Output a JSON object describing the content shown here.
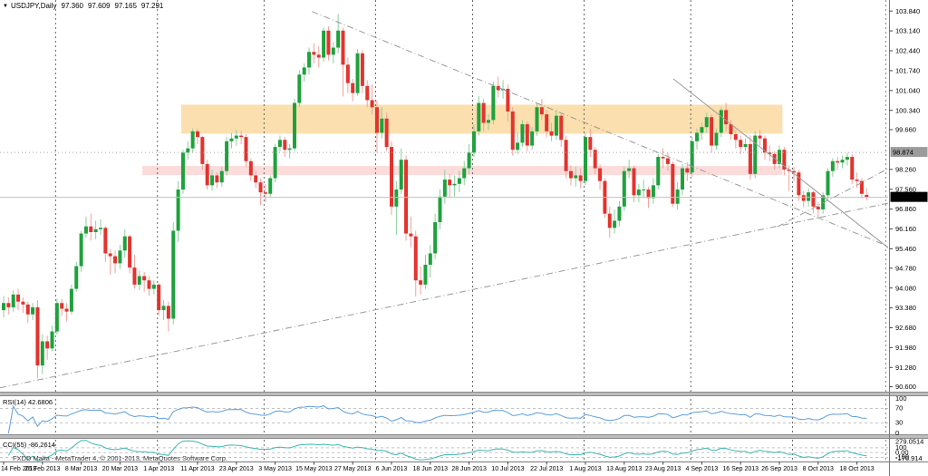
{
  "title": {
    "symbol": "USDJPY,Daily",
    "open": "97.360",
    "high": "97.609",
    "low": "97.165",
    "close": "97.291"
  },
  "watermark": {
    "text": "FXDD Malta - MetaTrader 4, © 2001-2013, MetaQuotes Software Corp."
  },
  "price_axis": {
    "labels": [
      "103.840",
      "103.140",
      "102.440",
      "101.740",
      "101.040",
      "100.340",
      "99.660",
      "98.260",
      "97.560",
      "96.860",
      "96.160",
      "95.460",
      "94.780",
      "94.080",
      "93.380",
      "92.680",
      "91.980",
      "91.280",
      "90.600"
    ],
    "gray_badge": {
      "text": "98.874",
      "price": 98.874
    },
    "black_badge": {
      "text": "97.291",
      "price": 97.291
    }
  },
  "time_axis": {
    "label_every_n_bars": 8,
    "labels": [
      "14 Feb 2013",
      "26 Feb 2013",
      "8 Mar 2013",
      "20 Mar 2013",
      "1 Apr 2013",
      "11 Apr 2013",
      "23 Apr 2013",
      "3 May 2013",
      "15 May 2013",
      "27 May 2013",
      "6 Jun 2013",
      "18 Jun 2013",
      "28 Jun 2013",
      "10 Jul 2013",
      "22 Jul 2013",
      "1 Aug 2013",
      "13 Aug 2013",
      "23 Aug 2013",
      "4 Sep 2013",
      "16 Sep 2013",
      "26 Sep 2013",
      "8 Oct 2013",
      "18 Oct 2013"
    ]
  },
  "panels": {
    "rsi": {
      "display_name": "RSI(14)",
      "value": "42.6806",
      "axis_labels": [
        "100",
        "70",
        "30",
        "0"
      ],
      "levels": [
        70,
        30
      ],
      "range": [
        0,
        100
      ],
      "color": "#5b9fdc"
    },
    "cci": {
      "display_name": "CCI(55)",
      "value": "-86.2614",
      "max_label": "279.0514",
      "axis_labels": [
        "100",
        "0.00",
        "-100"
      ],
      "min_label": "-176.914",
      "levels": [
        100,
        0,
        -100
      ],
      "range": [
        -176.914,
        279.0514
      ],
      "color": "#3fb8b2"
    }
  },
  "chart_data": {
    "type": "candlestick",
    "title": "USDJPY,Daily 97.360 97.609 97.165 97.291",
    "symbol": "USDJPY",
    "timeframe": "Daily",
    "ylim": [
      90.43,
      104.23
    ],
    "grid": "off",
    "up_color": "#1fa13d",
    "down_color": "#e2332e",
    "up_wick_color": "#8ccf9c",
    "down_wick_color": "#f2a19c",
    "zones": [
      {
        "name": "resistance-zone",
        "color": "#fbdfae",
        "price_from": 99.52,
        "price_to": 100.54,
        "bar_from": 37,
        "bar_to": 161
      },
      {
        "name": "support-zone",
        "color": "#fbdcda",
        "price_from": 98.06,
        "price_to": 98.38,
        "bar_from": 29,
        "bar_to": 161
      }
    ],
    "hlines": [
      {
        "price": 98.874,
        "style": "dotted",
        "color": "#a8a8a8"
      },
      {
        "price": 97.291,
        "style": "solid",
        "color": "#c0c0c0"
      }
    ],
    "trendlines": [
      {
        "bar1": 64,
        "price1": 103.82,
        "bar2": 188,
        "price2": 95.19,
        "style": "dashdot"
      },
      {
        "bar1": -0.4,
        "price1": 90.56,
        "bar2": 191,
        "price2": 97.36,
        "style": "dashdot"
      },
      {
        "bar1": 138.5,
        "price1": 101.45,
        "bar2": 187.5,
        "price2": 94.87,
        "style": "solid"
      },
      {
        "bar1": 160,
        "price1": 96.24,
        "bar2": 191,
        "price2": 99.02,
        "style": "dashdot"
      }
    ],
    "month_separator_bars": [
      11,
      32,
      54,
      77,
      97,
      120,
      142,
      163
    ],
    "rsi_period": 14,
    "cci_period": 55,
    "candles": [
      [
        93.3,
        93.8,
        93.05,
        93.55
      ],
      [
        93.55,
        93.75,
        93.15,
        93.4
      ],
      [
        93.4,
        94.0,
        93.25,
        93.85
      ],
      [
        93.85,
        94.05,
        93.3,
        93.6
      ],
      [
        93.6,
        93.75,
        93.2,
        93.5
      ],
      [
        93.5,
        93.6,
        92.85,
        93.15
      ],
      [
        93.15,
        93.55,
        92.95,
        93.4
      ],
      [
        93.4,
        93.65,
        90.9,
        91.35
      ],
      [
        91.35,
        92.45,
        91.05,
        92.2
      ],
      [
        92.2,
        92.4,
        91.55,
        91.95
      ],
      [
        91.95,
        92.75,
        91.85,
        92.55
      ],
      [
        92.55,
        93.7,
        92.45,
        93.55
      ],
      [
        93.55,
        93.7,
        93.1,
        93.35
      ],
      [
        93.35,
        93.55,
        92.9,
        93.25
      ],
      [
        93.25,
        94.2,
        93.15,
        94.05
      ],
      [
        94.05,
        95.0,
        93.95,
        94.85
      ],
      [
        94.85,
        96.1,
        94.65,
        96.0
      ],
      [
        96.0,
        96.6,
        95.85,
        96.25
      ],
      [
        96.25,
        96.7,
        95.75,
        96.05
      ],
      [
        96.05,
        96.45,
        95.8,
        96.15
      ],
      [
        96.15,
        96.5,
        95.95,
        96.2
      ],
      [
        96.2,
        96.25,
        95.0,
        95.3
      ],
      [
        95.3,
        95.45,
        94.55,
        95.2
      ],
      [
        95.2,
        95.4,
        94.6,
        94.95
      ],
      [
        94.95,
        95.6,
        94.75,
        95.4
      ],
      [
        95.4,
        96.15,
        95.15,
        95.9
      ],
      [
        95.9,
        95.95,
        94.6,
        94.8
      ],
      [
        94.8,
        95.25,
        94.05,
        94.2
      ],
      [
        94.2,
        94.7,
        94.0,
        94.5
      ],
      [
        94.5,
        94.65,
        93.95,
        94.35
      ],
      [
        94.35,
        94.5,
        93.8,
        94.05
      ],
      [
        94.05,
        94.35,
        93.85,
        94.2
      ],
      [
        94.2,
        94.25,
        93.1,
        93.3
      ],
      [
        93.3,
        93.65,
        92.95,
        93.45
      ],
      [
        93.45,
        93.6,
        92.55,
        93.0
      ],
      [
        93.0,
        96.4,
        92.8,
        96.1
      ],
      [
        96.1,
        97.85,
        95.7,
        97.55
      ],
      [
        97.55,
        98.95,
        97.4,
        98.85
      ],
      [
        98.85,
        99.25,
        98.6,
        99.0
      ],
      [
        99.0,
        99.7,
        98.85,
        99.6
      ],
      [
        99.6,
        99.7,
        99.15,
        99.4
      ],
      [
        99.4,
        99.45,
        98.25,
        98.45
      ],
      [
        98.45,
        98.6,
        97.55,
        97.7
      ],
      [
        97.7,
        98.25,
        97.5,
        98.05
      ],
      [
        98.05,
        98.15,
        97.6,
        97.8
      ],
      [
        97.8,
        98.35,
        97.65,
        98.2
      ],
      [
        98.2,
        99.4,
        98.05,
        99.25
      ],
      [
        99.25,
        99.55,
        99.0,
        99.35
      ],
      [
        99.35,
        99.65,
        99.1,
        99.45
      ],
      [
        99.45,
        99.6,
        99.15,
        99.4
      ],
      [
        99.4,
        99.5,
        98.35,
        98.55
      ],
      [
        98.55,
        98.65,
        97.85,
        98.05
      ],
      [
        98.05,
        98.2,
        97.6,
        97.8
      ],
      [
        97.8,
        97.95,
        97.0,
        97.45
      ],
      [
        97.45,
        97.75,
        97.1,
        97.4
      ],
      [
        97.4,
        98.05,
        97.25,
        97.95
      ],
      [
        97.95,
        99.15,
        97.8,
        99.05
      ],
      [
        99.05,
        99.45,
        98.9,
        99.3
      ],
      [
        99.3,
        99.4,
        98.7,
        98.95
      ],
      [
        98.95,
        99.15,
        98.65,
        99.0
      ],
      [
        99.0,
        100.75,
        98.9,
        100.6
      ],
      [
        100.6,
        101.75,
        100.45,
        101.6
      ],
      [
        101.6,
        102.0,
        101.35,
        101.85
      ],
      [
        101.85,
        102.55,
        101.6,
        102.4
      ],
      [
        102.4,
        102.7,
        102.0,
        102.3
      ],
      [
        102.3,
        102.6,
        101.85,
        102.2
      ],
      [
        102.2,
        103.25,
        102.05,
        103.15
      ],
      [
        103.15,
        103.3,
        102.1,
        102.3
      ],
      [
        102.3,
        102.75,
        102.0,
        102.55
      ],
      [
        102.55,
        103.74,
        102.35,
        103.15
      ],
      [
        103.15,
        103.25,
        100.83,
        101.95
      ],
      [
        101.95,
        102.2,
        100.95,
        101.3
      ],
      [
        101.3,
        101.45,
        100.65,
        100.95
      ],
      [
        100.95,
        102.5,
        100.85,
        102.35
      ],
      [
        102.35,
        102.45,
        100.95,
        101.2
      ],
      [
        101.2,
        101.4,
        100.45,
        100.7
      ],
      [
        100.7,
        101.25,
        100.2,
        100.45
      ],
      [
        100.45,
        100.7,
        98.85,
        99.55
      ],
      [
        99.55,
        100.45,
        99.35,
        100.05
      ],
      [
        100.05,
        100.25,
        98.9,
        99.05
      ],
      [
        99.05,
        99.25,
        96.65,
        96.95
      ],
      [
        96.95,
        97.85,
        95.95,
        97.55
      ],
      [
        97.55,
        99.0,
        97.4,
        98.6
      ],
      [
        98.6,
        98.75,
        95.75,
        96.0
      ],
      [
        96.0,
        96.6,
        95.5,
        95.9
      ],
      [
        95.9,
        96.1,
        93.78,
        94.35
      ],
      [
        94.35,
        94.85,
        93.85,
        94.2
      ],
      [
        94.2,
        95.25,
        94.05,
        94.9
      ],
      [
        94.9,
        95.6,
        94.45,
        95.3
      ],
      [
        95.3,
        96.7,
        95.1,
        96.4
      ],
      [
        96.4,
        97.55,
        96.15,
        97.3
      ],
      [
        97.3,
        98.25,
        97.05,
        97.9
      ],
      [
        97.9,
        98.1,
        97.25,
        97.7
      ],
      [
        97.7,
        98.05,
        97.3,
        97.75
      ],
      [
        97.75,
        98.2,
        97.45,
        97.95
      ],
      [
        97.95,
        98.55,
        97.7,
        98.3
      ],
      [
        98.3,
        99.15,
        98.1,
        98.85
      ],
      [
        98.85,
        99.85,
        98.7,
        99.6
      ],
      [
        99.6,
        100.85,
        99.45,
        100.6
      ],
      [
        100.6,
        100.75,
        99.6,
        99.9
      ],
      [
        99.9,
        100.2,
        99.65,
        100.0
      ],
      [
        100.0,
        101.35,
        99.85,
        101.2
      ],
      [
        101.2,
        101.53,
        100.8,
        101.05
      ],
      [
        101.05,
        101.4,
        100.75,
        101.1
      ],
      [
        101.1,
        101.25,
        99.95,
        100.3
      ],
      [
        100.3,
        100.45,
        98.75,
        98.95
      ],
      [
        98.95,
        99.55,
        98.8,
        99.2
      ],
      [
        99.2,
        100.0,
        99.05,
        99.85
      ],
      [
        99.85,
        99.95,
        98.9,
        99.1
      ],
      [
        99.1,
        99.75,
        98.95,
        99.6
      ],
      [
        99.6,
        100.6,
        99.45,
        100.45
      ],
      [
        100.45,
        100.75,
        100.0,
        100.2
      ],
      [
        100.2,
        100.35,
        99.4,
        99.6
      ],
      [
        99.6,
        99.9,
        99.25,
        99.45
      ],
      [
        99.45,
        100.35,
        99.3,
        100.15
      ],
      [
        100.15,
        100.25,
        99.05,
        99.3
      ],
      [
        99.3,
        99.45,
        97.95,
        98.2
      ],
      [
        98.2,
        98.4,
        97.7,
        97.95
      ],
      [
        97.95,
        98.35,
        97.65,
        98.05
      ],
      [
        98.05,
        98.3,
        97.6,
        97.85
      ],
      [
        97.85,
        99.55,
        97.7,
        99.4
      ],
      [
        99.4,
        99.7,
        98.7,
        98.95
      ],
      [
        98.95,
        99.05,
        98.1,
        98.3
      ],
      [
        98.3,
        98.45,
        97.55,
        97.85
      ],
      [
        97.85,
        97.95,
        96.55,
        96.7
      ],
      [
        96.7,
        96.95,
        95.85,
        96.2
      ],
      [
        96.2,
        96.85,
        96.0,
        96.45
      ],
      [
        96.45,
        97.15,
        96.25,
        96.95
      ],
      [
        96.95,
        98.35,
        96.8,
        98.2
      ],
      [
        98.2,
        98.6,
        97.95,
        98.3
      ],
      [
        98.3,
        98.4,
        97.1,
        97.35
      ],
      [
        97.35,
        97.75,
        97.1,
        97.55
      ],
      [
        97.55,
        97.9,
        97.25,
        97.55
      ],
      [
        97.55,
        97.65,
        96.9,
        97.25
      ],
      [
        97.25,
        97.95,
        97.05,
        97.7
      ],
      [
        97.7,
        98.8,
        97.55,
        98.7
      ],
      [
        98.7,
        99.0,
        98.3,
        98.65
      ],
      [
        98.65,
        98.85,
        98.2,
        98.45
      ],
      [
        98.45,
        98.55,
        96.95,
        97.05
      ],
      [
        97.05,
        97.8,
        96.85,
        97.55
      ],
      [
        97.55,
        98.45,
        97.35,
        98.3
      ],
      [
        98.3,
        98.5,
        97.85,
        98.15
      ],
      [
        98.15,
        99.4,
        98.0,
        99.25
      ],
      [
        99.25,
        99.7,
        98.95,
        99.55
      ],
      [
        99.55,
        99.9,
        99.3,
        99.75
      ],
      [
        99.75,
        100.25,
        99.55,
        100.1
      ],
      [
        100.1,
        100.2,
        98.85,
        99.1
      ],
      [
        99.1,
        99.7,
        98.95,
        99.55
      ],
      [
        99.55,
        100.45,
        99.4,
        100.35
      ],
      [
        100.35,
        100.6,
        99.6,
        99.85
      ],
      [
        99.85,
        100.0,
        99.3,
        99.5
      ],
      [
        99.5,
        99.65,
        99.0,
        99.3
      ],
      [
        99.3,
        99.45,
        98.8,
        99.05
      ],
      [
        99.05,
        99.35,
        98.9,
        99.15
      ],
      [
        99.15,
        99.45,
        97.9,
        98.1
      ],
      [
        98.1,
        99.6,
        97.95,
        99.45
      ],
      [
        99.45,
        99.65,
        99.1,
        99.35
      ],
      [
        99.35,
        99.45,
        98.6,
        98.85
      ],
      [
        98.85,
        99.1,
        98.55,
        98.8
      ],
      [
        98.8,
        98.9,
        98.25,
        98.45
      ],
      [
        98.45,
        99.1,
        98.3,
        98.95
      ],
      [
        98.95,
        99.05,
        98.05,
        98.25
      ],
      [
        98.25,
        98.4,
        97.5,
        98.2
      ],
      [
        98.2,
        98.35,
        97.85,
        98.15
      ],
      [
        98.15,
        98.25,
        97.15,
        97.35
      ],
      [
        97.35,
        97.5,
        96.93,
        97.15
      ],
      [
        97.15,
        97.6,
        96.95,
        97.45
      ],
      [
        97.45,
        97.5,
        96.7,
        96.95
      ],
      [
        96.95,
        97.1,
        96.57,
        96.85
      ],
      [
        96.85,
        97.45,
        96.7,
        97.35
      ],
      [
        97.35,
        98.3,
        97.2,
        98.2
      ],
      [
        98.2,
        98.65,
        98.0,
        98.55
      ],
      [
        98.55,
        98.7,
        98.25,
        98.5
      ],
      [
        98.5,
        98.75,
        98.3,
        98.6
      ],
      [
        98.6,
        98.85,
        98.4,
        98.7
      ],
      [
        98.7,
        98.8,
        97.75,
        97.9
      ],
      [
        97.9,
        98.15,
        97.6,
        97.85
      ],
      [
        97.85,
        97.95,
        97.25,
        97.4
      ],
      [
        97.36,
        97.609,
        97.165,
        97.291
      ]
    ]
  }
}
